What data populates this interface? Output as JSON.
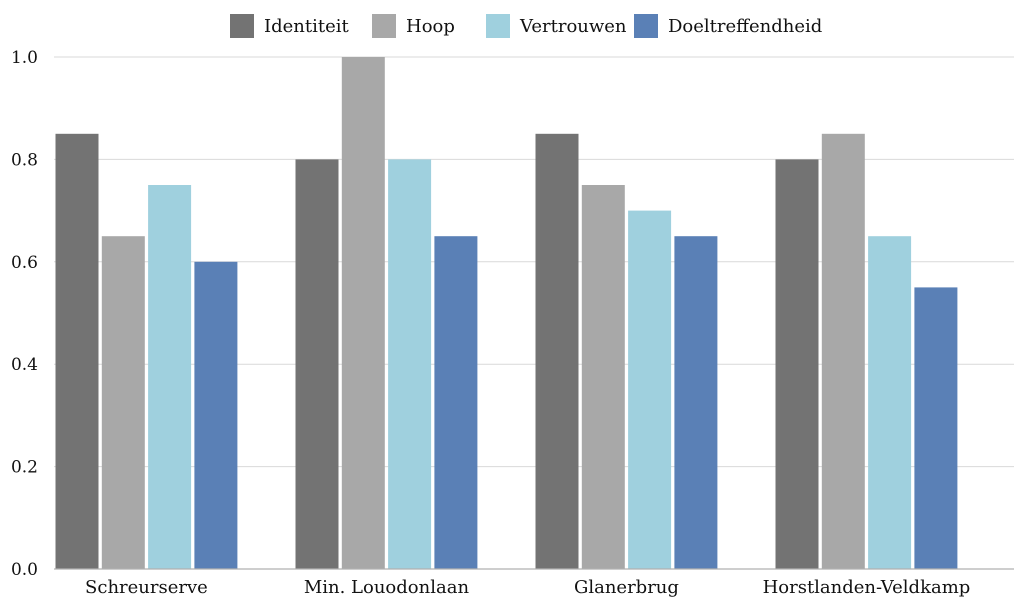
{
  "chart_data": {
    "type": "bar",
    "title": "",
    "xlabel": "",
    "ylabel": "",
    "categories": [
      "Schreurserve",
      "Min. Louodonlaan",
      "Glanerbrug",
      "Horstlanden-Veldkamp"
    ],
    "series": [
      {
        "name": "Identiteit",
        "color": "#737373",
        "values": [
          0.85,
          0.8,
          0.85,
          0.8
        ]
      },
      {
        "name": "Hoop",
        "color": "#a8a8a8",
        "values": [
          0.65,
          1.0,
          0.75,
          0.85
        ]
      },
      {
        "name": "Vertrouwen",
        "color": "#9fd0de",
        "values": [
          0.75,
          0.8,
          0.7,
          0.65
        ]
      },
      {
        "name": "Doeltreffendheid",
        "color": "#5a80b6",
        "values": [
          0.6,
          0.65,
          0.65,
          0.55
        ]
      }
    ],
    "ylim": [
      0,
      1.0
    ],
    "yticks": [
      "0.0",
      "0.2",
      "0.4",
      "0.6",
      "0.8",
      "1.0"
    ],
    "grid": true,
    "legend_position": "top-center"
  }
}
